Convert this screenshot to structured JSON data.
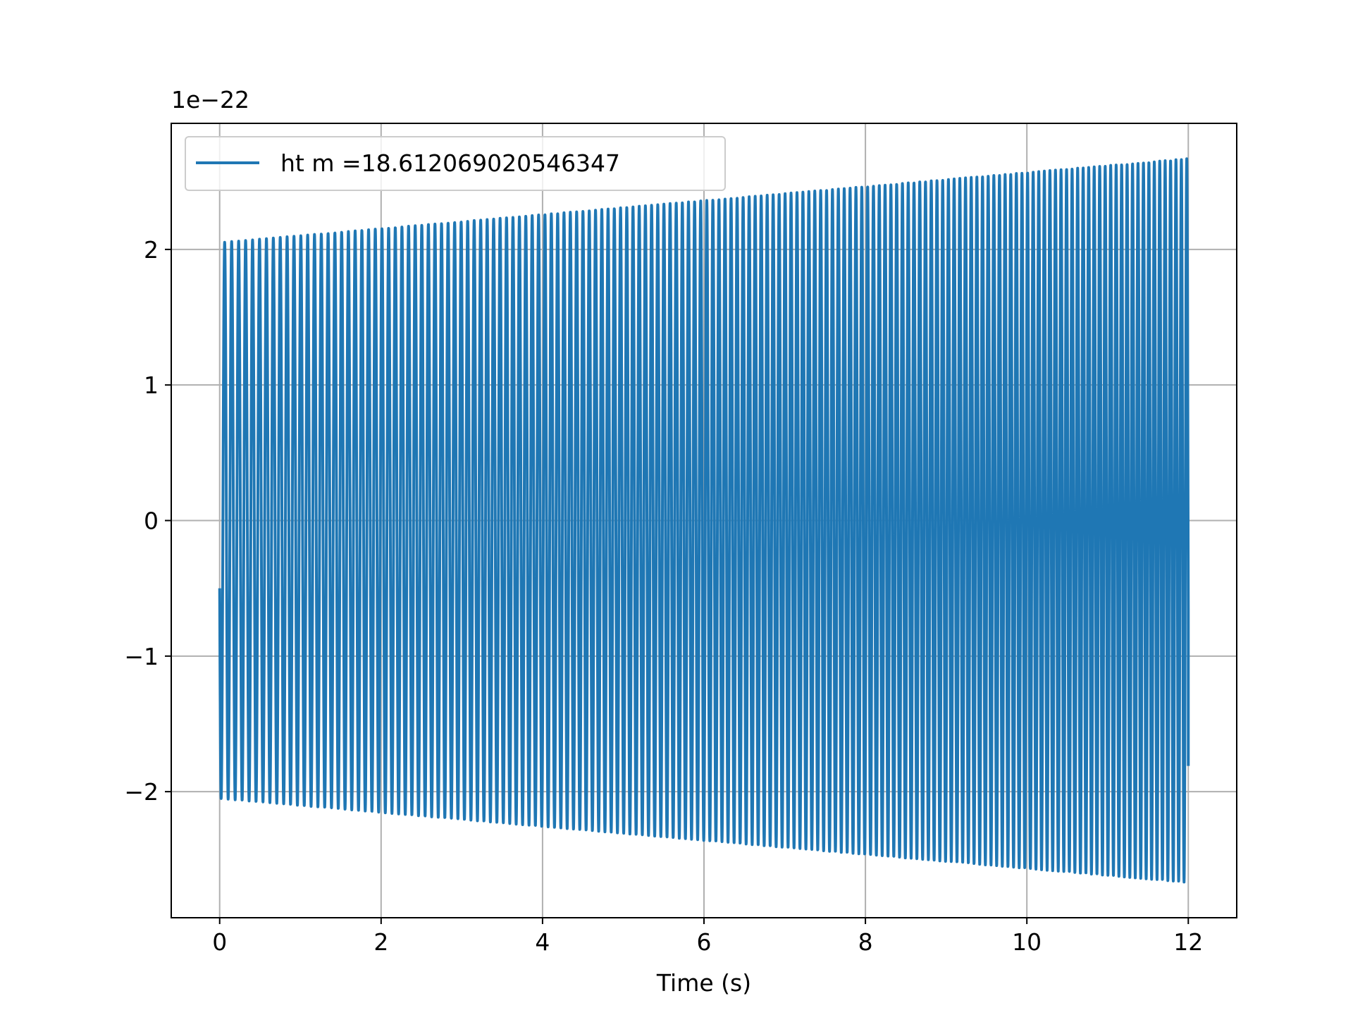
{
  "chart_data": {
    "type": "line",
    "title": "",
    "xlabel": "Time (s)",
    "ylabel": "",
    "y_offset_label": "1e−22",
    "xlim": [
      -0.6,
      12.6
    ],
    "ylim": [
      -2.93,
      2.93
    ],
    "x_ticks": [
      0,
      2,
      4,
      6,
      8,
      10,
      12
    ],
    "x_tick_labels": [
      "0",
      "2",
      "4",
      "6",
      "8",
      "10",
      "12"
    ],
    "y_ticks": [
      -2,
      -1,
      0,
      1,
      2
    ],
    "y_tick_labels": [
      "−2",
      "−1",
      "0",
      "1",
      "2"
    ],
    "grid": true,
    "legend_position": "upper-left",
    "series": [
      {
        "name": "ht m =18.612069020546347",
        "color": "#1f77b4",
        "t_start": 0,
        "t_end": 12,
        "start_value": -0.5,
        "end_value": -1.81,
        "amplitude_start": 2.05,
        "amplitude_end": 2.67,
        "frequency_start": 11.5,
        "frequency_end": 15.0
      }
    ]
  }
}
